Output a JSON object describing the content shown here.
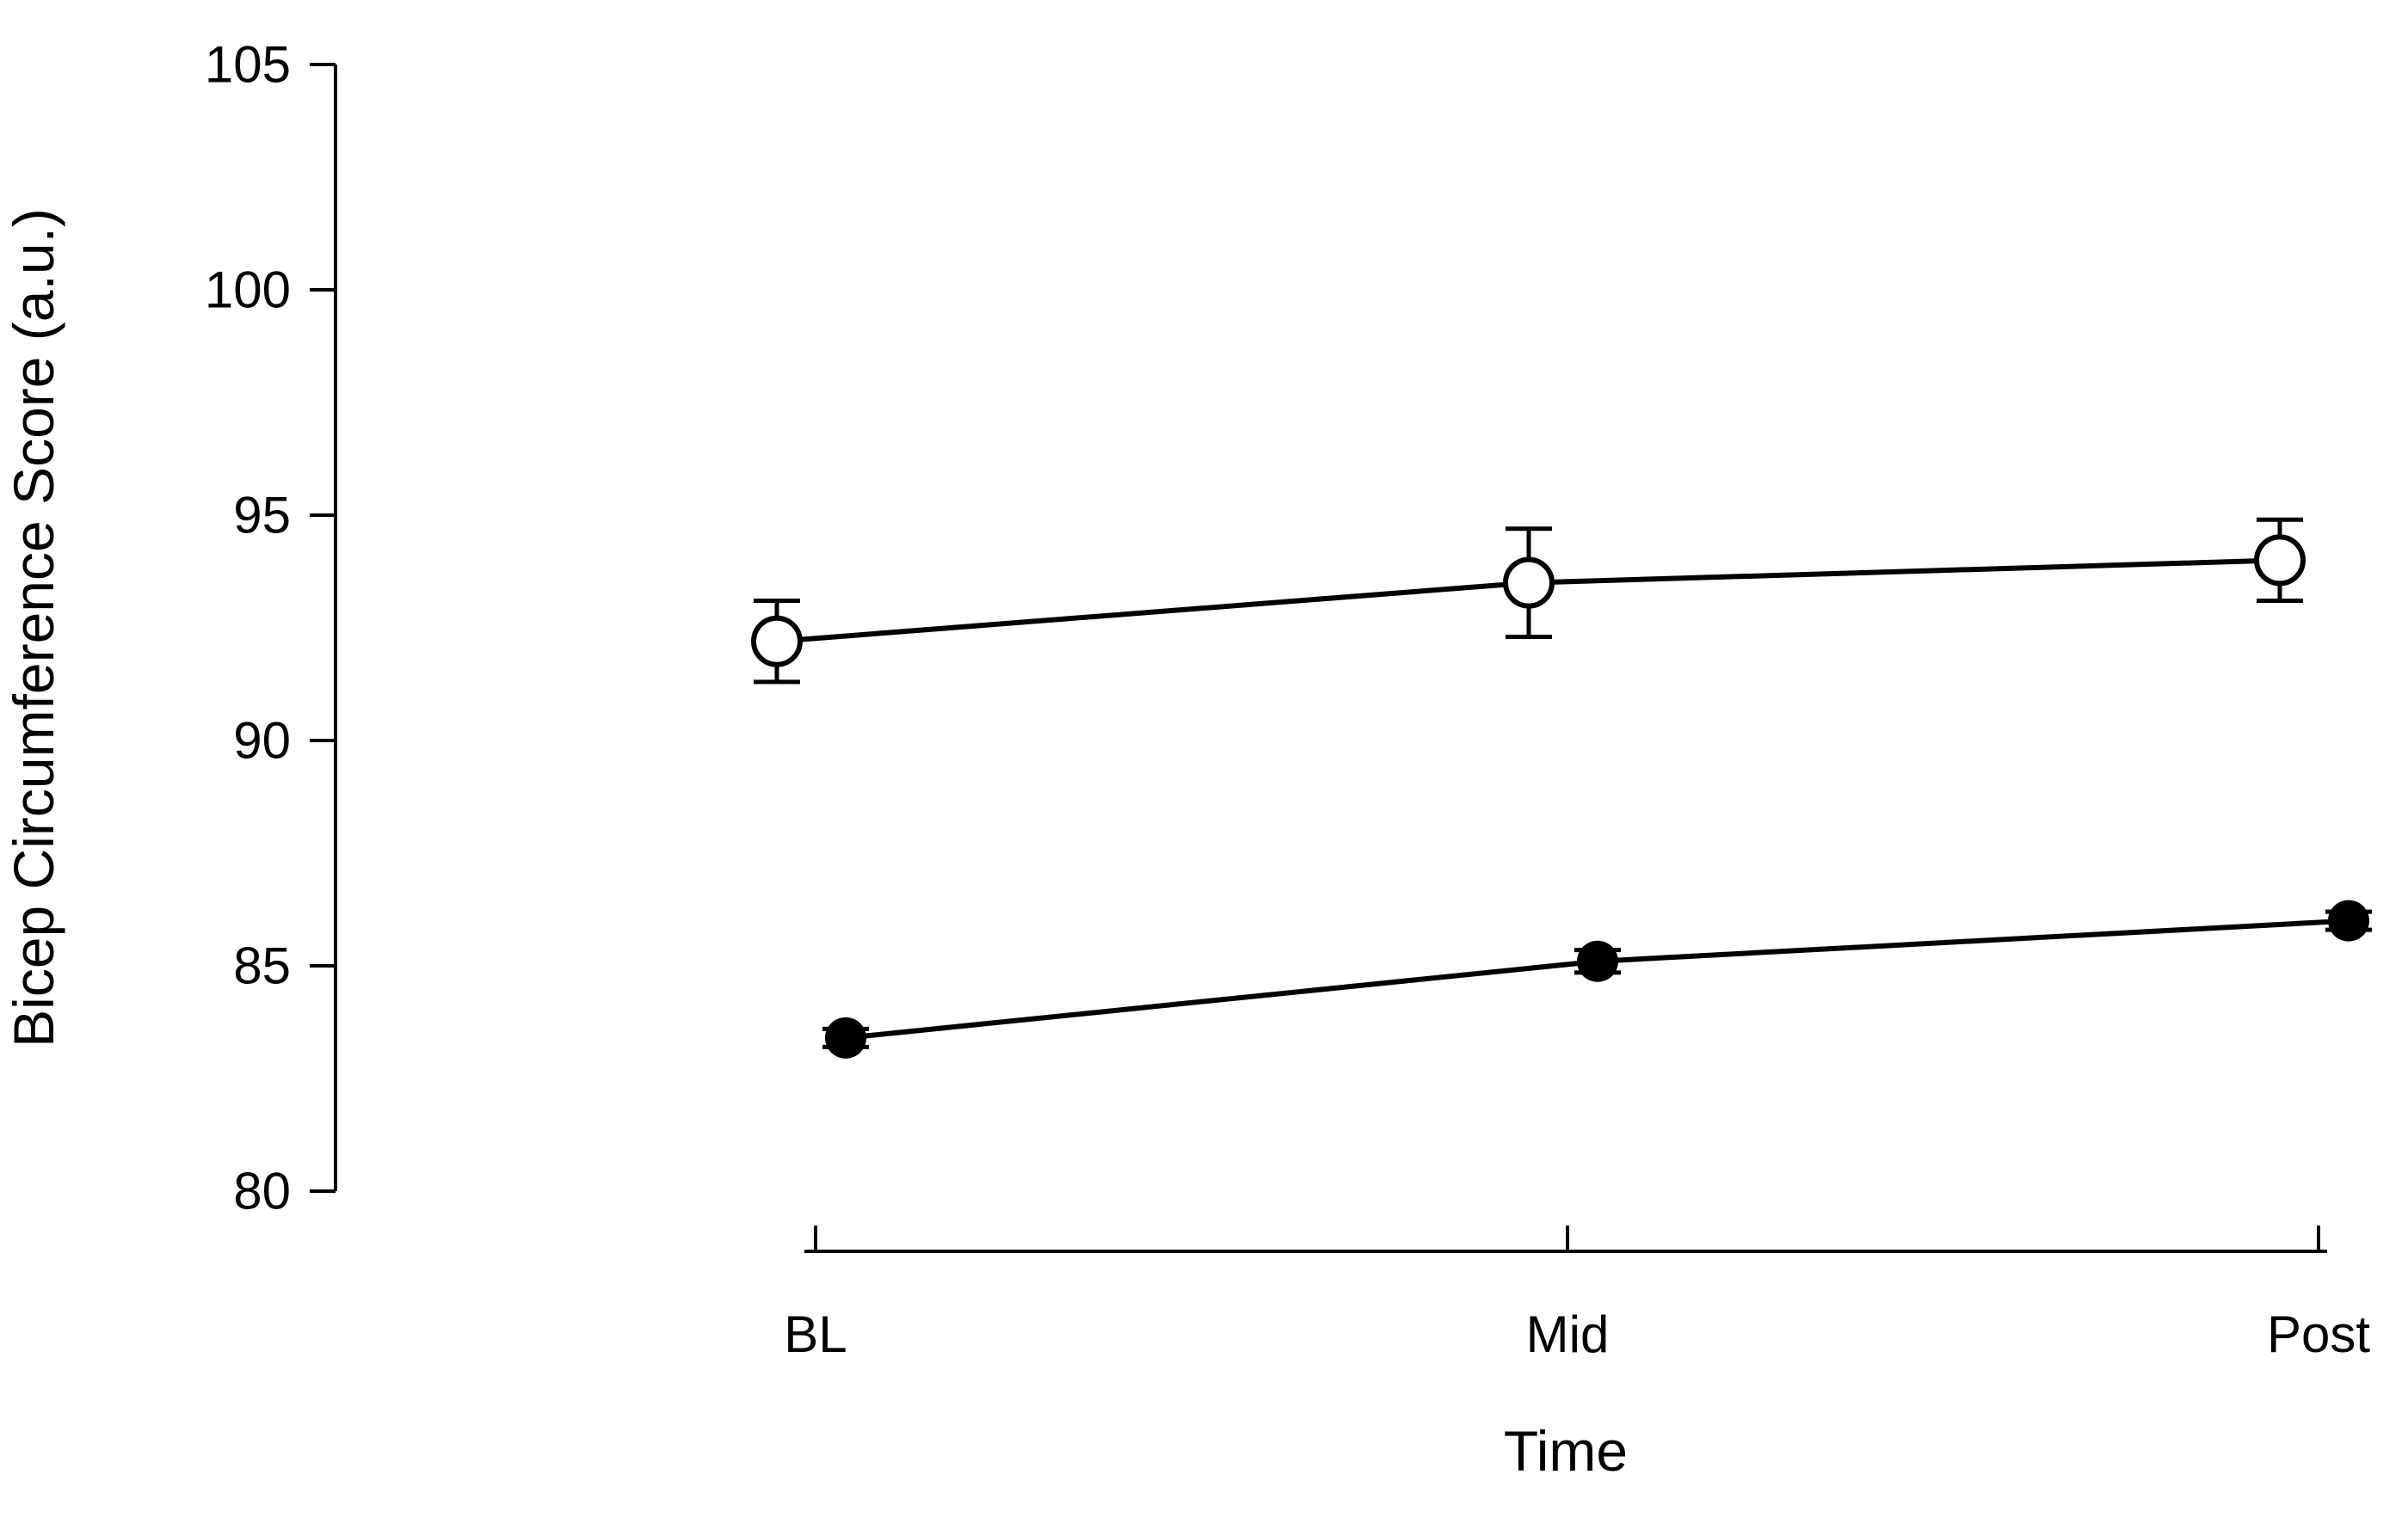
{
  "figure": {
    "background": "#ffffff",
    "foreground": "#000000"
  },
  "chart_data": {
    "type": "line",
    "title": "",
    "xlabel": "Time",
    "ylabel": "Bicep Circumference Score (a.u.)",
    "categories": [
      "BL",
      "Mid",
      "Post"
    ],
    "series": [
      {
        "name": "open-circle-group",
        "marker": "open-circle",
        "values": [
          92.2,
          93.5,
          94.0
        ],
        "errors": [
          0.9,
          1.2,
          0.9
        ],
        "color": "#000000"
      },
      {
        "name": "filled-circle-group",
        "marker": "filled-circle",
        "values": [
          83.4,
          85.1,
          86.0
        ],
        "errors": [
          0.2,
          0.25,
          0.2
        ],
        "color": "#000000"
      }
    ],
    "ylim": [
      80,
      105
    ],
    "yticks": [
      80,
      85,
      90,
      95,
      100,
      105
    ],
    "grid": false,
    "legend_position": "none",
    "error_bars": true,
    "axis_style": "offset-frameless"
  }
}
